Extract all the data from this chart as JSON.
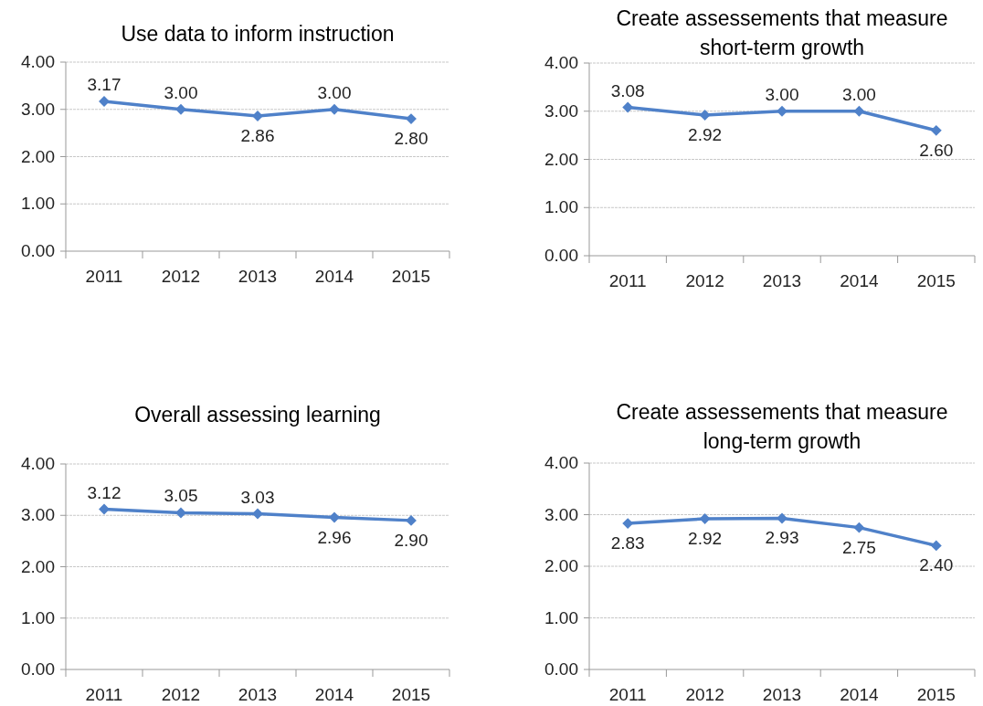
{
  "chart_data": [
    {
      "type": "line",
      "title": "Use data to inform instruction",
      "categories": [
        "2011",
        "2012",
        "2013",
        "2014",
        "2015"
      ],
      "series": [
        {
          "color": "#4f81c9",
          "values": [
            3.17,
            3.0,
            2.86,
            3.0,
            2.8
          ],
          "value_labels": [
            "3.17",
            "3.00",
            "2.86",
            "3.00",
            "2.80"
          ]
        }
      ],
      "ylim": [
        0,
        4
      ],
      "yticks": [
        {
          "value": 0,
          "label": "0.00"
        },
        {
          "value": 1,
          "label": "1.00"
        },
        {
          "value": 2,
          "label": "2.00"
        },
        {
          "value": 3,
          "label": "3.00"
        },
        {
          "value": 4,
          "label": "4.00"
        }
      ],
      "grid": "y",
      "marker": "diamond",
      "line_style": "solid"
    },
    {
      "type": "line",
      "title": "Create assessements that measure short-term growth",
      "categories": [
        "2011",
        "2012",
        "2013",
        "2014",
        "2015"
      ],
      "series": [
        {
          "color": "#4f81c9",
          "values": [
            3.08,
            2.92,
            3.0,
            3.0,
            2.6
          ],
          "value_labels": [
            "3.08",
            "2.92",
            "3.00",
            "3.00",
            "2.60"
          ]
        }
      ],
      "ylim": [
        0,
        4
      ],
      "yticks": [
        {
          "value": 0,
          "label": "0.00"
        },
        {
          "value": 1,
          "label": "1.00"
        },
        {
          "value": 2,
          "label": "2.00"
        },
        {
          "value": 3,
          "label": "3.00"
        },
        {
          "value": 4,
          "label": "4.00"
        }
      ],
      "grid": "y",
      "marker": "diamond",
      "line_style": "solid"
    },
    {
      "type": "line",
      "title": "Overall assessing learning",
      "categories": [
        "2011",
        "2012",
        "2013",
        "2014",
        "2015"
      ],
      "series": [
        {
          "color": "#4f81c9",
          "values": [
            3.12,
            3.05,
            3.03,
            2.96,
            2.9
          ],
          "value_labels": [
            "3.12",
            "3.05",
            "3.03",
            "2.96",
            "2.90"
          ]
        }
      ],
      "ylim": [
        0,
        4
      ],
      "yticks": [
        {
          "value": 0,
          "label": "0.00"
        },
        {
          "value": 1,
          "label": "1.00"
        },
        {
          "value": 2,
          "label": "2.00"
        },
        {
          "value": 3,
          "label": "3.00"
        },
        {
          "value": 4,
          "label": "4.00"
        }
      ],
      "grid": "y",
      "marker": "diamond",
      "line_style": "solid"
    },
    {
      "type": "line",
      "title": "Create assessements that measure long-term growth",
      "categories": [
        "2011",
        "2012",
        "2013",
        "2014",
        "2015"
      ],
      "series": [
        {
          "color": "#4f81c9",
          "values": [
            2.83,
            2.92,
            2.93,
            2.75,
            2.4
          ],
          "value_labels": [
            "2.83",
            "2.92",
            "2.93",
            "2.75",
            "2.40"
          ]
        }
      ],
      "ylim": [
        0,
        4
      ],
      "yticks": [
        {
          "value": 0,
          "label": "0.00"
        },
        {
          "value": 1,
          "label": "1.00"
        },
        {
          "value": 2,
          "label": "2.00"
        },
        {
          "value": 3,
          "label": "3.00"
        },
        {
          "value": 4,
          "label": "4.00"
        }
      ],
      "grid": "y",
      "marker": "diamond",
      "line_style": "solid"
    }
  ]
}
